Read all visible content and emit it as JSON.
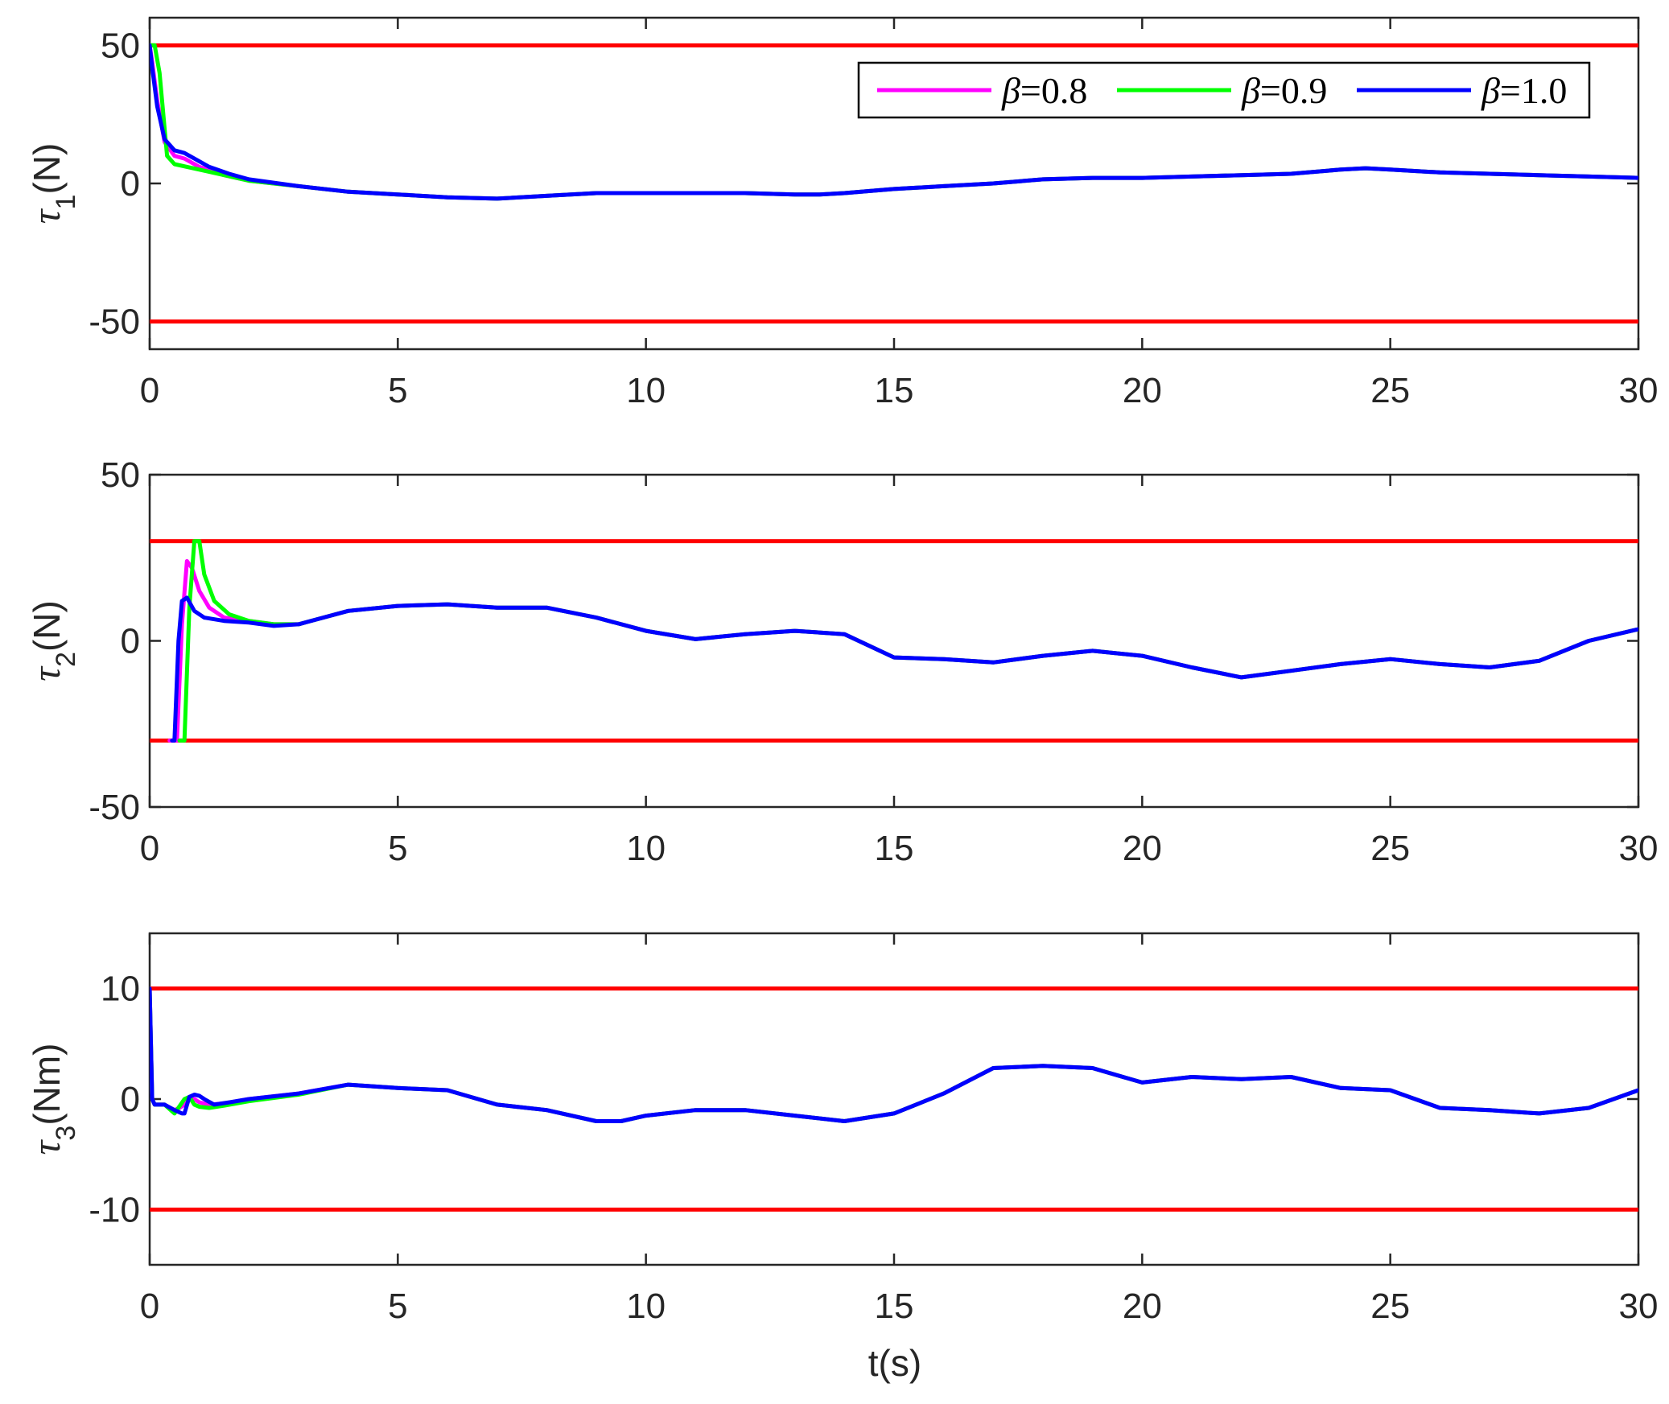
{
  "legend": {
    "prefix": "β",
    "entries": [
      "=0.8",
      "=0.9",
      "=1.0"
    ]
  },
  "colors": {
    "beta08": "#ff00ff",
    "beta09": "#00ff00",
    "beta10": "#0000ff",
    "limit": "#ff0000",
    "axis": "#262626"
  },
  "xlabel": "t(s)",
  "chart_data": [
    {
      "type": "line",
      "ylabel": {
        "symbol": "τ",
        "sub": "1",
        "unit": "(N)"
      },
      "xlim": [
        0,
        30
      ],
      "ylim": [
        -60,
        60
      ],
      "xticks": [
        0,
        5,
        10,
        15,
        20,
        25,
        30
      ],
      "yticks": [
        -50,
        0,
        50
      ],
      "limits": [
        50,
        -50
      ],
      "series": [
        {
          "name": "β=0.8",
          "x": [
            0,
            0.05,
            0.15,
            0.3,
            0.5,
            0.7,
            1.0,
            1.5,
            2,
            3,
            4,
            5,
            6,
            7,
            8,
            9,
            10,
            11,
            12,
            13,
            13.5,
            14,
            15,
            16,
            17,
            18,
            19,
            20,
            21,
            22,
            23,
            24,
            24.5,
            25,
            26,
            27,
            28,
            29,
            30
          ],
          "y": [
            50,
            44,
            30,
            15,
            10,
            9,
            6,
            3,
            1,
            -1,
            -3,
            -4,
            -5,
            -5.5,
            -4.5,
            -3.5,
            -3.5,
            -3.5,
            -3.5,
            -4,
            -4,
            -3.5,
            -2,
            -1,
            0,
            1.5,
            2,
            2,
            2.5,
            3,
            3.5,
            5,
            5.5,
            5,
            4,
            3.5,
            3,
            2.5,
            2
          ]
        },
        {
          "name": "β=0.9",
          "x": [
            0,
            0.1,
            0.2,
            0.35,
            0.5,
            1.0,
            1.5,
            2,
            3,
            4,
            5,
            6,
            7,
            8,
            9,
            10,
            11,
            12,
            13,
            13.5,
            14,
            15,
            16,
            17,
            18,
            19,
            20,
            21,
            22,
            23,
            24,
            24.5,
            25,
            26,
            27,
            28,
            29,
            30
          ],
          "y": [
            50,
            50,
            40,
            10,
            7,
            5,
            3,
            1,
            -1,
            -3,
            -4,
            -5,
            -5.5,
            -4.5,
            -3.5,
            -3.5,
            -3.5,
            -3.5,
            -4,
            -4,
            -3.5,
            -2,
            -1,
            0,
            1.5,
            2,
            2,
            2.5,
            3,
            3.5,
            5,
            5.5,
            5,
            4,
            3.5,
            3,
            2.5,
            2
          ]
        },
        {
          "name": "β=1.0",
          "x": [
            0,
            0.05,
            0.15,
            0.3,
            0.5,
            0.7,
            0.9,
            1.2,
            1.6,
            2,
            3,
            4,
            5,
            6,
            7,
            8,
            9,
            10,
            11,
            12,
            13,
            13.5,
            14,
            15,
            16,
            17,
            18,
            19,
            20,
            21,
            22,
            23,
            24,
            24.5,
            25,
            26,
            27,
            28,
            29,
            30
          ],
          "y": [
            50,
            42,
            28,
            16,
            12,
            11,
            9,
            6,
            3.5,
            1.5,
            -1,
            -3,
            -4,
            -5,
            -5.5,
            -4.5,
            -3.5,
            -3.5,
            -3.5,
            -3.5,
            -4,
            -4,
            -3.5,
            -2,
            -1,
            0,
            1.5,
            2,
            2,
            2.5,
            3,
            3.5,
            5,
            5.5,
            5,
            4,
            3.5,
            3,
            2.5,
            2
          ]
        }
      ]
    },
    {
      "type": "line",
      "ylabel": {
        "symbol": "τ",
        "sub": "2",
        "unit": "(N)"
      },
      "xlim": [
        0,
        30
      ],
      "ylim": [
        -50,
        50
      ],
      "xticks": [
        0,
        5,
        10,
        15,
        20,
        25,
        30
      ],
      "yticks": [
        -50,
        0,
        50
      ],
      "limits": [
        30,
        -30
      ],
      "series": [
        {
          "name": "β=0.8",
          "x": [
            0.4,
            0.55,
            0.65,
            0.75,
            0.85,
            1.0,
            1.2,
            1.5,
            2,
            2.5,
            3,
            4,
            5,
            6,
            7,
            8,
            9,
            10,
            11,
            12,
            13,
            14,
            15,
            16,
            17,
            18,
            19,
            20,
            21,
            22,
            23,
            24,
            25,
            26,
            27,
            28,
            29,
            30
          ],
          "y": [
            -30,
            -30,
            5,
            24,
            22,
            15,
            10,
            7,
            6,
            5,
            5,
            9,
            10.5,
            11,
            10,
            10,
            7,
            3,
            0.5,
            2,
            3,
            2,
            -5,
            -5.5,
            -6.5,
            -4.5,
            -3,
            -4.5,
            -8,
            -11,
            -9,
            -7,
            -5.5,
            -7,
            -8,
            -6,
            0,
            3.5
          ]
        },
        {
          "name": "β=0.9",
          "x": [
            0.6,
            0.7,
            0.8,
            0.9,
            1.0,
            1.1,
            1.3,
            1.6,
            2,
            2.5,
            3,
            4,
            5,
            6,
            7,
            8,
            9,
            10,
            11,
            12,
            13,
            14,
            15,
            16,
            17,
            18,
            19,
            20,
            21,
            22,
            23,
            24,
            25,
            26,
            27,
            28,
            29,
            30
          ],
          "y": [
            -30,
            -30,
            10,
            30,
            30,
            20,
            12,
            8,
            6,
            5,
            5,
            9,
            10.5,
            11,
            10,
            10,
            7,
            3,
            0.5,
            2,
            3,
            2,
            -5,
            -5.5,
            -6.5,
            -4.5,
            -3,
            -4.5,
            -8,
            -11,
            -9,
            -7,
            -5.5,
            -7,
            -8,
            -6,
            0,
            3.5
          ]
        },
        {
          "name": "β=1.0",
          "x": [
            0.45,
            0.5,
            0.58,
            0.65,
            0.75,
            0.9,
            1.1,
            1.5,
            2,
            2.5,
            3,
            4,
            5,
            6,
            7,
            8,
            9,
            10,
            11,
            12,
            13,
            14,
            15,
            16,
            17,
            18,
            19,
            20,
            21,
            22,
            23,
            24,
            25,
            26,
            27,
            28,
            29,
            30
          ],
          "y": [
            -30,
            -30,
            0,
            12,
            13,
            9,
            7,
            6,
            5.5,
            4.5,
            5,
            9,
            10.5,
            11,
            10,
            10,
            7,
            3,
            0.5,
            2,
            3,
            2,
            -5,
            -5.5,
            -6.5,
            -4.5,
            -3,
            -4.5,
            -8,
            -11,
            -9,
            -7,
            -5.5,
            -7,
            -8,
            -6,
            0,
            3.5
          ]
        }
      ]
    },
    {
      "type": "line",
      "ylabel": {
        "symbol": "τ",
        "sub": "3",
        "unit": "(Nm)"
      },
      "xlim": [
        0,
        30
      ],
      "ylim": [
        -15,
        15
      ],
      "xticks": [
        0,
        5,
        10,
        15,
        20,
        25,
        30
      ],
      "yticks": [
        -10,
        0,
        10
      ],
      "limits": [
        10,
        -10
      ],
      "series": [
        {
          "name": "β=0.8",
          "x": [
            0,
            0.05,
            0.1,
            0.3,
            0.5,
            0.6,
            0.7,
            0.8,
            0.9,
            1.0,
            1.2,
            1.5,
            2,
            3,
            4,
            5,
            6,
            7,
            8,
            9,
            9.5,
            10,
            11,
            12,
            13,
            14,
            15,
            16,
            17,
            18,
            19,
            20,
            21,
            22,
            23,
            24,
            25,
            26,
            27,
            28,
            29,
            30
          ],
          "y": [
            10,
            0,
            -0.5,
            -0.5,
            -1,
            -0.8,
            -0.5,
            0.2,
            0,
            -0.3,
            -0.5,
            -0.4,
            0,
            0.5,
            1.3,
            1,
            0.8,
            -0.5,
            -1,
            -2,
            -2,
            -1.5,
            -1,
            -1,
            -1.5,
            -2,
            -1.3,
            0.5,
            2.8,
            3,
            2.8,
            1.5,
            2,
            1.8,
            2,
            1,
            0.8,
            -0.8,
            -1,
            -1.3,
            -0.8,
            0.8
          ]
        },
        {
          "name": "β=0.9",
          "x": [
            0,
            0.05,
            0.1,
            0.3,
            0.5,
            0.7,
            0.8,
            0.9,
            1.0,
            1.2,
            1.5,
            2,
            3,
            4,
            5,
            6,
            7,
            8,
            9,
            9.5,
            10,
            11,
            12,
            13,
            14,
            15,
            16,
            17,
            18,
            19,
            20,
            21,
            22,
            23,
            24,
            25,
            26,
            27,
            28,
            29,
            30
          ],
          "y": [
            10,
            0,
            -0.5,
            -0.5,
            -1.3,
            0,
            0.2,
            -0.5,
            -0.7,
            -0.8,
            -0.6,
            -0.2,
            0.4,
            1.3,
            1,
            0.8,
            -0.5,
            -1,
            -2,
            -2,
            -1.5,
            -1,
            -1,
            -1.5,
            -2,
            -1.3,
            0.5,
            2.8,
            3,
            2.8,
            1.5,
            2,
            1.8,
            2,
            1,
            0.8,
            -0.8,
            -1,
            -1.3,
            -0.8,
            0.8
          ]
        },
        {
          "name": "β=1.0",
          "x": [
            0,
            0.05,
            0.1,
            0.3,
            0.5,
            0.65,
            0.7,
            0.8,
            0.9,
            1.0,
            1.1,
            1.3,
            1.6,
            2,
            3,
            4,
            5,
            6,
            7,
            8,
            9,
            9.5,
            10,
            11,
            12,
            13,
            14,
            15,
            16,
            17,
            18,
            19,
            20,
            21,
            22,
            23,
            24,
            25,
            26,
            27,
            28,
            29,
            30
          ],
          "y": [
            10,
            0,
            -0.5,
            -0.5,
            -1,
            -1.3,
            -1.3,
            0.2,
            0.4,
            0.3,
            0,
            -0.5,
            -0.3,
            0,
            0.5,
            1.3,
            1,
            0.8,
            -0.5,
            -1,
            -2,
            -2,
            -1.5,
            -1,
            -1,
            -1.5,
            -2,
            -1.3,
            0.5,
            2.8,
            3,
            2.8,
            1.5,
            2,
            1.8,
            2,
            1,
            0.8,
            -0.8,
            -1,
            -1.3,
            -0.8,
            0.8
          ]
        }
      ]
    }
  ]
}
